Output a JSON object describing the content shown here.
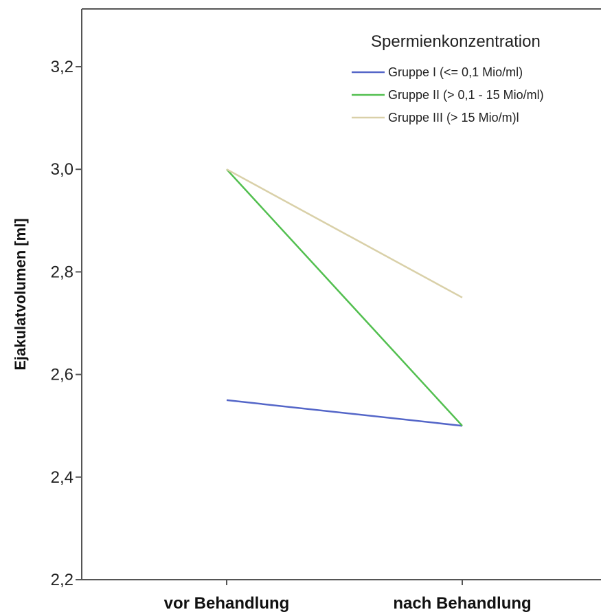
{
  "chart_data": {
    "type": "line",
    "title": "",
    "xlabel": "",
    "ylabel": "Ejakulatvolumen [ml]",
    "categories": [
      "vor Behandlung",
      "nach Behandlung"
    ],
    "ylim": [
      2.2,
      3.3
    ],
    "yticks": [
      "2,2",
      "2,4",
      "2,6",
      "2,8",
      "3,0",
      "3,2"
    ],
    "ytick_values": [
      2.2,
      2.4,
      2.6,
      2.8,
      3.0,
      3.2
    ],
    "grid": false,
    "legend": {
      "title": "Spermienkonzentration",
      "position": "top-right"
    },
    "series": [
      {
        "name": "Gruppe I (<= 0,1 Mio/ml)",
        "values": [
          2.55,
          2.5
        ],
        "color": "#5466c8"
      },
      {
        "name": "Gruppe II (> 0,1 - 15 Mio/ml)",
        "values": [
          3.0,
          2.5
        ],
        "color": "#52bf4f"
      },
      {
        "name": "Gruppe III (> 15 Mio/m)l",
        "values": [
          3.0,
          2.75
        ],
        "color": "#d9d0a8"
      }
    ]
  }
}
